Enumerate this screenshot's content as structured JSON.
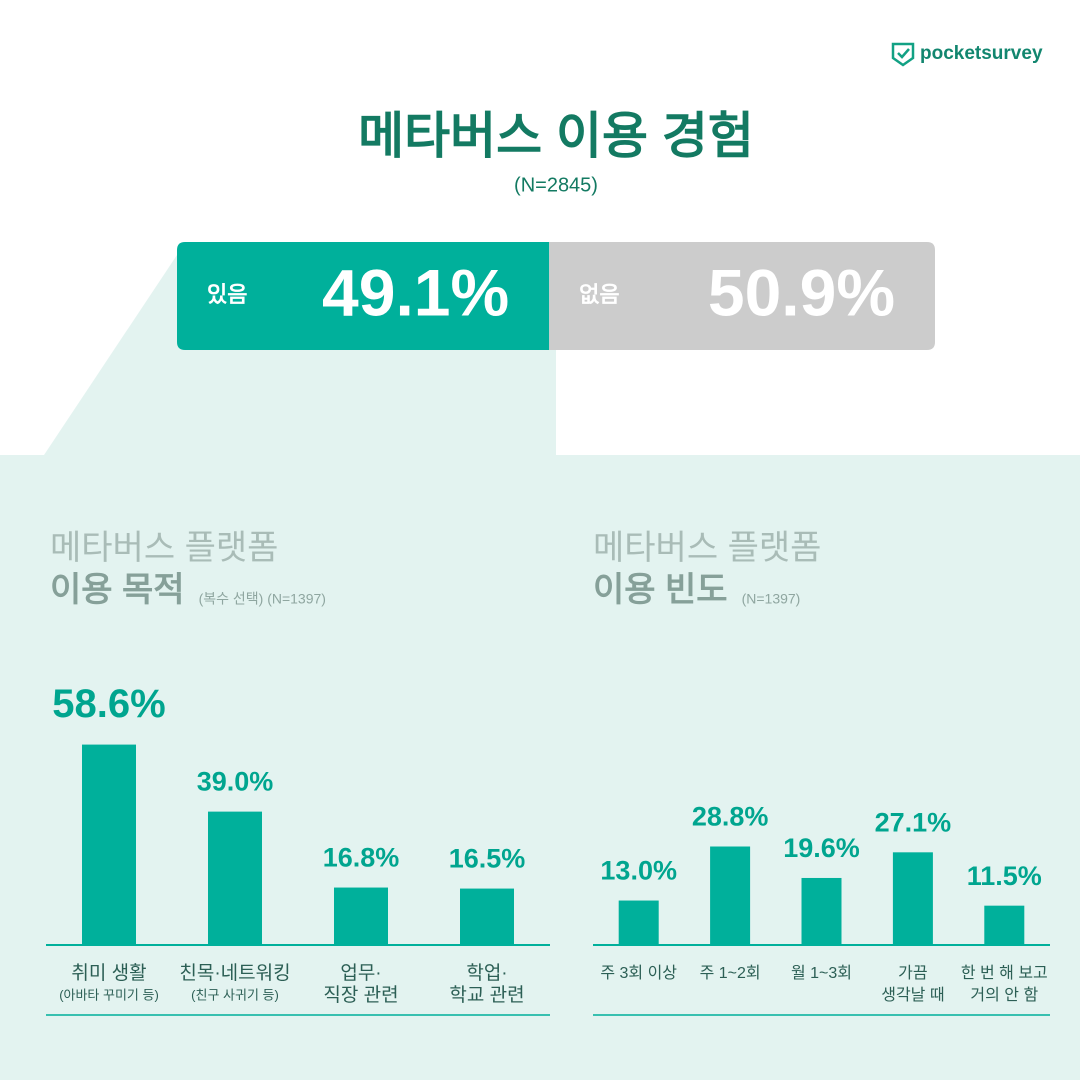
{
  "brand": "pocketsurvey",
  "chart_data": [
    {
      "type": "stacked",
      "title": "메타버스 이용 경험",
      "subtitle": "(N=2845)",
      "categories": [
        "있음",
        "없음"
      ],
      "values": [
        49.1,
        50.9
      ],
      "value_labels": [
        "49.1%",
        "50.9%"
      ],
      "colors": [
        "#00b09b",
        "#cccccc"
      ]
    },
    {
      "type": "bar",
      "title": [
        "메타버스 플랫폼",
        "이용 목적"
      ],
      "note": "(복수 선택) (N=1397)",
      "categories": [
        "취미 생활",
        "친목·네트워킹",
        "업무·\n직장 관련",
        "학업·\n학교 관련"
      ],
      "sublabels": [
        "(아바타 꾸미기 등)",
        "(친구 사귀기 등)",
        null,
        null
      ],
      "values": [
        58.6,
        39.0,
        16.8,
        16.5
      ],
      "value_labels": [
        "58.6%",
        "39.0%",
        "16.8%",
        "16.5%"
      ],
      "color": "#00b09b"
    },
    {
      "type": "bar",
      "title": [
        "메타버스 플랫폼",
        "이용 빈도"
      ],
      "note": "(N=1397)",
      "categories": [
        "주 3회 이상",
        "주 1~2회",
        "월 1~3회",
        "가끔\n생각날 때",
        "한 번 해 보고\n거의 안 함"
      ],
      "values": [
        13.0,
        28.8,
        19.6,
        27.1,
        11.5
      ],
      "value_labels": [
        "13.0%",
        "28.8%",
        "19.6%",
        "27.1%",
        "11.5%"
      ],
      "color": "#00b09b"
    }
  ]
}
